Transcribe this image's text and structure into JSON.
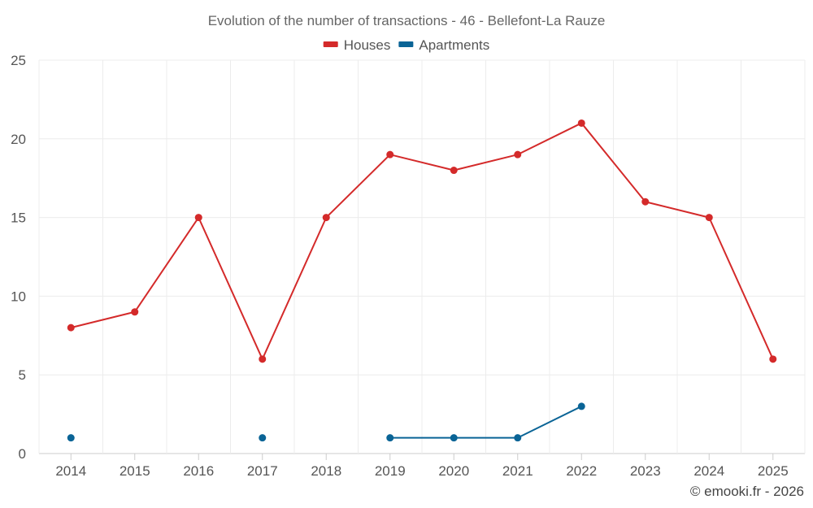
{
  "chart_data": {
    "type": "line",
    "title": "Evolution of the number of transactions - 46 - Bellefont-La Rauze",
    "categories": [
      "2014",
      "2015",
      "2016",
      "2017",
      "2018",
      "2019",
      "2020",
      "2021",
      "2022",
      "2023",
      "2024",
      "2025"
    ],
    "y_ticks": [
      "0",
      "5",
      "10",
      "15",
      "20",
      "25"
    ],
    "ylim": [
      0,
      25
    ],
    "grid": true,
    "legend_position": "top-center",
    "series": [
      {
        "name": "Houses",
        "color": "#d42a2a",
        "values": [
          8,
          9,
          15,
          6,
          15,
          19,
          18,
          19,
          21,
          16,
          15,
          6
        ]
      },
      {
        "name": "Apartments",
        "color": "#0a6496",
        "values": [
          1,
          null,
          null,
          1,
          null,
          1,
          1,
          1,
          3,
          null,
          null,
          null
        ]
      }
    ]
  },
  "credit": "© emooki.fr - 2026"
}
